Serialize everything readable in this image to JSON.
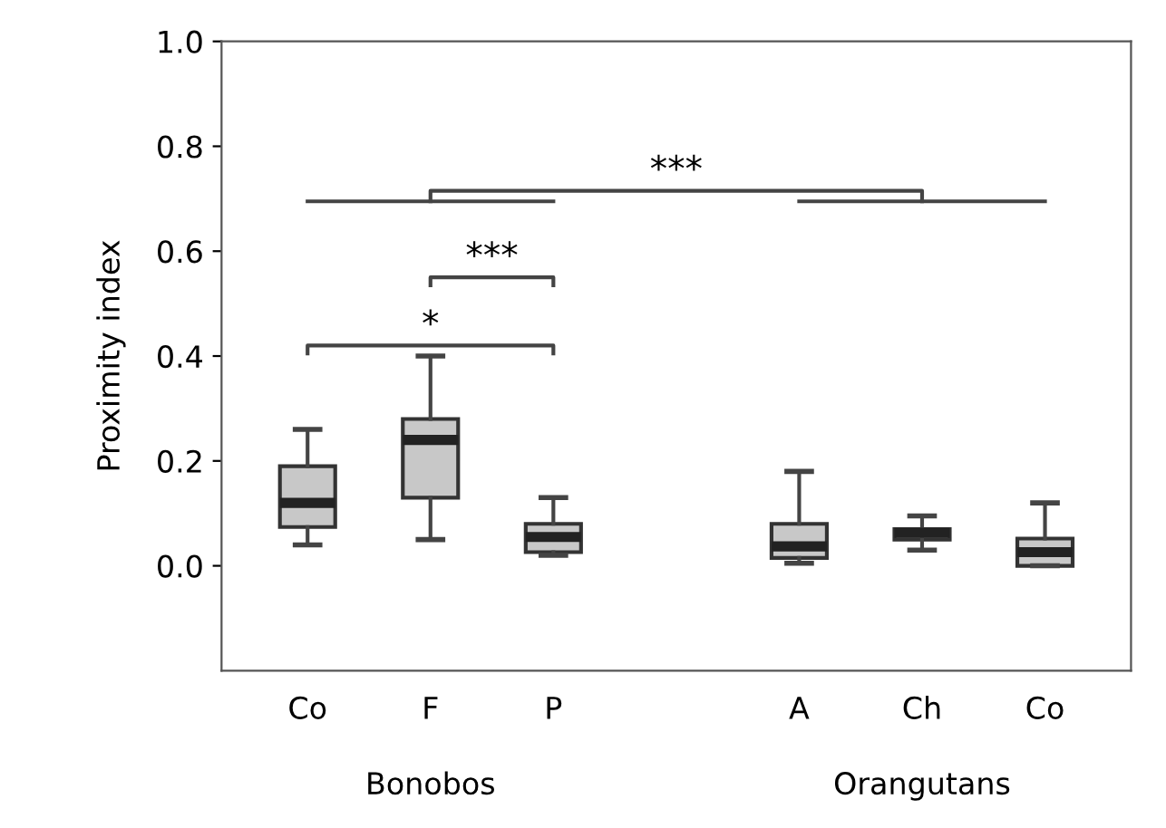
{
  "chart_data": {
    "type": "box",
    "ylabel": "Proximity index",
    "categories": [
      "Co",
      "F",
      "P",
      null,
      "A",
      "Ch",
      "Co"
    ],
    "boxes": [
      {
        "low": 0.04,
        "q1": 0.074,
        "median": 0.12,
        "q3": 0.19,
        "high": 0.26
      },
      {
        "low": 0.05,
        "q1": 0.13,
        "median": 0.24,
        "q3": 0.28,
        "high": 0.4
      },
      {
        "low": 0.02,
        "q1": 0.026,
        "median": 0.055,
        "q3": 0.08,
        "high": 0.13
      },
      null,
      {
        "low": 0.005,
        "q1": 0.015,
        "median": 0.037,
        "q3": 0.08,
        "high": 0.18
      },
      {
        "low": 0.03,
        "q1": 0.05,
        "median": 0.063,
        "q3": 0.07,
        "high": 0.095
      },
      {
        "low": 0.0,
        "q1": 0.0,
        "median": 0.026,
        "q3": 0.052,
        "high": 0.12
      }
    ],
    "color": "#c8c8c8",
    "ylim": [
      -0.2,
      1.0
    ],
    "yticks": [
      {
        "value": 0.0,
        "label": "0.0"
      },
      0.2,
      0.4,
      0.6,
      0.8,
      {
        "value": 1.0,
        "label": "1.0"
      }
    ],
    "grid": false,
    "annotations": [
      "*",
      "***",
      "***",
      "Bonobos",
      "Orangutans"
    ]
  }
}
